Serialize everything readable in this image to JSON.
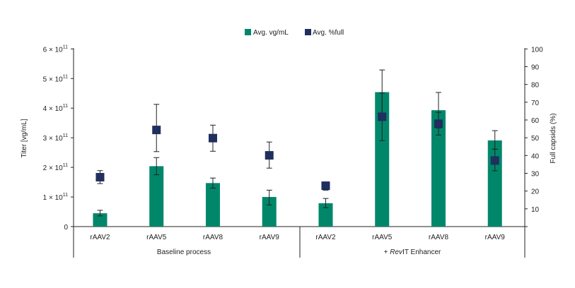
{
  "chart_data": {
    "type": "bar",
    "legend": {
      "placement": "top",
      "items": [
        {
          "label": "Avg. vg/mL",
          "color": "#00876a",
          "marker": "bar"
        },
        {
          "label": "Avg. %full",
          "color": "#1f2f5e",
          "marker": "square"
        }
      ]
    },
    "groups": [
      {
        "label": "Baseline process",
        "categories": [
          "rAAV2",
          "rAAV5",
          "rAAV8",
          "rAAV9"
        ]
      },
      {
        "label": "+ RevIT Enhancer",
        "label_parts": {
          "prefix": "+ ",
          "italic": "Rev",
          "suffix": "IT Enhancer"
        },
        "categories": [
          "rAAV2",
          "rAAV5",
          "rAAV8",
          "rAAV9"
        ]
      }
    ],
    "categories": [
      "rAAV2",
      "rAAV5",
      "rAAV8",
      "rAAV9",
      "rAAV2",
      "rAAV5",
      "rAAV8",
      "rAAV9"
    ],
    "series": [
      {
        "name": "Avg. vg/mL",
        "axis": "left",
        "type": "bar",
        "color": "#00876a",
        "values": [
          45000000000.0,
          204000000000.0,
          147000000000.0,
          100000000000.0,
          79000000000.0,
          454000000000.0,
          393000000000.0,
          291000000000.0
        ],
        "error_low": [
          36000000000.0,
          175000000000.0,
          130000000000.0,
          73000000000.0,
          64000000000.0,
          379000000000.0,
          333000000000.0,
          261000000000.0
        ],
        "error_high": [
          55000000000.0,
          233000000000.0,
          164000000000.0,
          123000000000.0,
          95000000000.0,
          529000000000.0,
          453000000000.0,
          324000000000.0
        ]
      },
      {
        "name": "Avg. %full",
        "axis": "right",
        "type": "scatter",
        "color": "#1f2f5e",
        "values": [
          27.8,
          54.4,
          49.8,
          40.1,
          23.0,
          61.8,
          57.9,
          37.2
        ],
        "error_low": [
          24.2,
          42.2,
          42.4,
          32.9,
          20.5,
          48.4,
          51.5,
          31.4
        ],
        "error_high": [
          31.5,
          68.8,
          57.1,
          47.6,
          25.1,
          75.2,
          64.3,
          43.6
        ]
      }
    ],
    "y_left": {
      "label": "Titer [vg/mL]",
      "range": [
        0,
        600000000000.0
      ],
      "ticks": [
        {
          "value": 0,
          "mantissa": "0",
          "exp": ""
        },
        {
          "value": 100000000000.0,
          "mantissa": "1 × 10",
          "exp": "11"
        },
        {
          "value": 200000000000.0,
          "mantissa": "2 × 10",
          "exp": "11"
        },
        {
          "value": 300000000000.0,
          "mantissa": "3 × 10",
          "exp": "11"
        },
        {
          "value": 400000000000.0,
          "mantissa": "4 × 10",
          "exp": "11"
        },
        {
          "value": 500000000000.0,
          "mantissa": "5 × 10",
          "exp": "11"
        },
        {
          "value": 600000000000.0,
          "mantissa": "6 × 10",
          "exp": "11"
        }
      ]
    },
    "y_right": {
      "label": "Full capsids (%)",
      "range": [
        0,
        100
      ],
      "ticks": [
        "10",
        "20",
        "30",
        "40",
        "50",
        "60",
        "70",
        "80",
        "90",
        "100"
      ]
    },
    "grid": false
  }
}
